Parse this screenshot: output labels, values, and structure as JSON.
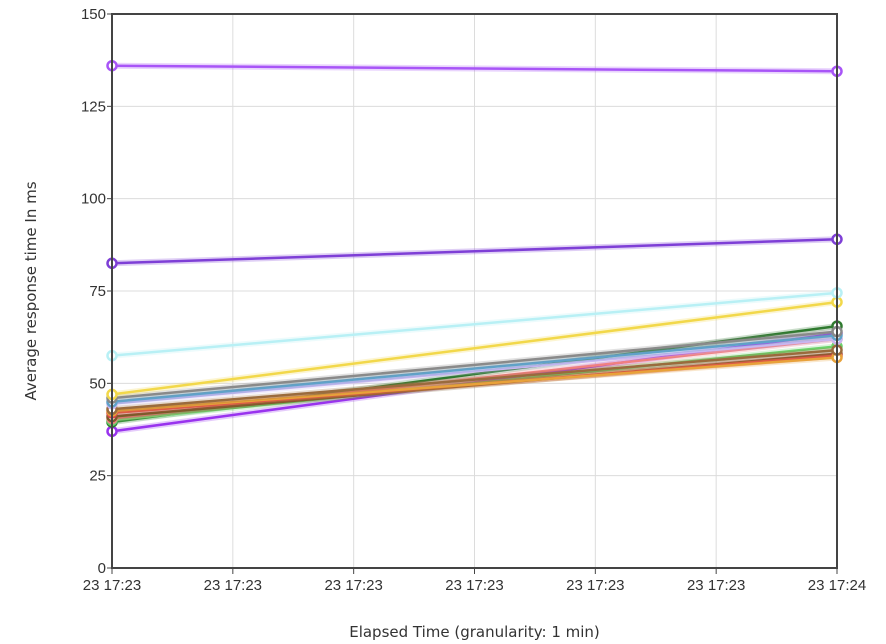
{
  "chart_data": {
    "type": "line",
    "xlabel": "Elapsed Time (granularity: 1 min)",
    "ylabel": "Average response time In ms",
    "ylim": [
      0,
      150
    ],
    "yticks": [
      0,
      25,
      50,
      75,
      100,
      125,
      150
    ],
    "x_tick_labels": [
      "23 17:23",
      "23 17:23",
      "23 17:23",
      "23 17:23",
      "23 17:23",
      "23 17:23",
      "23 17:24"
    ],
    "grid": true,
    "series": [
      {
        "color": "#a855f7",
        "values": [
          136,
          134.5
        ]
      },
      {
        "color": "#7e3fd6",
        "values": [
          82.5,
          89
        ]
      },
      {
        "color": "#b8f0f5",
        "values": [
          57.5,
          74.5
        ]
      },
      {
        "color": "#f2d84a",
        "values": [
          47,
          72
        ]
      },
      {
        "color": "#8a8a8a",
        "values": [
          46,
          64
        ]
      },
      {
        "color": "#5fa2c9",
        "values": [
          45,
          63
        ]
      },
      {
        "color": "#c9b6f0",
        "values": [
          44.5,
          62
        ]
      },
      {
        "color": "#9a6b3d",
        "values": [
          43,
          59
        ]
      },
      {
        "color": "#e8a23a",
        "values": [
          42.5,
          57
        ]
      },
      {
        "color": "#d9434b",
        "values": [
          42,
          57.5
        ]
      },
      {
        "color": "#7a5c2a",
        "values": [
          41,
          58
        ]
      },
      {
        "color": "#f08080",
        "values": [
          40.5,
          62
        ]
      },
      {
        "color": "#6bd26b",
        "values": [
          40,
          60
        ]
      },
      {
        "color": "#2f7a2f",
        "values": [
          39.5,
          65.5
        ]
      },
      {
        "color": "#9933ee",
        "values": [
          37,
          63.5
        ]
      }
    ]
  }
}
